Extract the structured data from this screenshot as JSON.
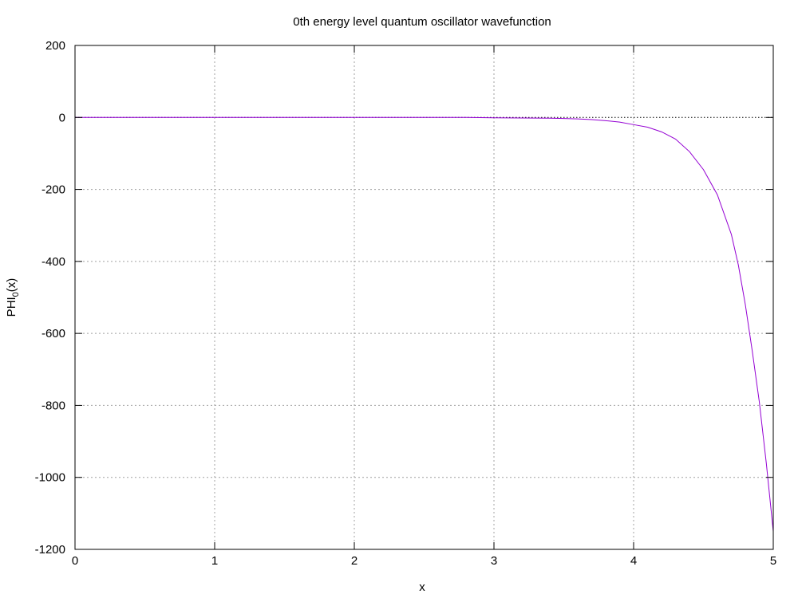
{
  "chart_data": {
    "type": "line",
    "title": "0th energy level quantum oscillator wavefunction",
    "xlabel": "x",
    "ylabel_main": "PHI",
    "ylabel_sub": "0",
    "ylabel_tail": "(x)",
    "xlim": [
      0,
      5
    ],
    "ylim": [
      -1200,
      200
    ],
    "x_ticks": [
      0,
      1,
      2,
      3,
      4,
      5
    ],
    "y_ticks": [
      200,
      0,
      -200,
      -400,
      -600,
      -800,
      -1000,
      -1200
    ],
    "x_tick_labels": [
      "0",
      "1",
      "2",
      "3",
      "4",
      "5"
    ],
    "y_tick_labels": [
      "200",
      "0",
      "-200",
      "-400",
      "-600",
      "-800",
      "-1000",
      "-1200"
    ],
    "grid": true,
    "zero_line": true,
    "line_color": "#9400d3",
    "series": [
      {
        "x": [
          0,
          0.5,
          1,
          1.5,
          2,
          2.5,
          2.8,
          3.0,
          3.2,
          3.4,
          3.5,
          3.6,
          3.7,
          3.8,
          3.9,
          4.0,
          4.1,
          4.2,
          4.3,
          4.4,
          4.5,
          4.6,
          4.7,
          4.75,
          4.8,
          4.85,
          4.9,
          4.95,
          5.0
        ],
        "y": [
          0,
          0,
          0,
          0,
          0,
          0,
          0,
          -1,
          -1.5,
          -2,
          -3,
          -4,
          -6,
          -9,
          -13,
          -20,
          -27,
          -40,
          -60,
          -95,
          -145,
          -215,
          -325,
          -410,
          -520,
          -650,
          -790,
          -960,
          -1150
        ]
      }
    ]
  }
}
